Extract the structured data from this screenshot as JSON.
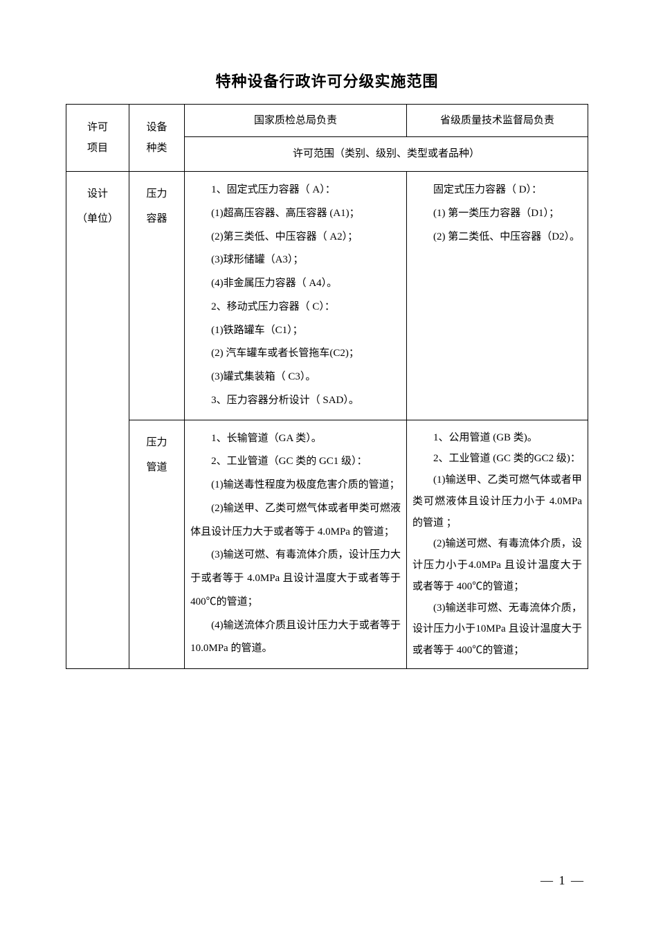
{
  "title": "特种设备行政许可分级实施范围",
  "headers": {
    "permit_project": "许可\n项目",
    "equipment_type": "设备\n种类",
    "national": "国家质检总局负责",
    "provincial": "省级质量技术监督局负责",
    "scope": "许可范围（类别、级别、类型或者品种）"
  },
  "rows": {
    "r1": {
      "permit": "设计\n（单位）",
      "equip1": "压力\n容器",
      "national1": {
        "p1": "1、固定式压力容器（ A）：",
        "p2": "(1)超高压容器、高压容器 (A1)；",
        "p3": "(2)第三类低、中压容器（ A2）；",
        "p4": "(3)球形储罐（A3）；",
        "p5": "(4)非金属压力容器（ A4）。",
        "p6": "2、移动式压力容器（ C）：",
        "p7": "(1)铁路罐车（C1）；",
        "p8": "(2) 汽车罐车或者长管拖车(C2)；",
        "p9": "(3)罐式集装箱（ C3）。",
        "p10": "3、压力容器分析设计（ SAD）。"
      },
      "provincial1": {
        "p1": "固定式压力容器（ D）：",
        "p2": "(1) 第一类压力容器（D1）；",
        "p3": "(2) 第二类低、中压容器（D2）。"
      },
      "equip2": "压力\n管道",
      "national2": {
        "p1": "1、长输管道（GA 类）。",
        "p2": "2、工业管道（GC 类的 GC1 级）：",
        "p3": "(1)输送毒性程度为极度危害介质的管道；",
        "p4": "(2)输送甲、乙类可燃气体或者甲类可燃液体且设计压力大于或者等于 4.0MPa 的管道；",
        "p5": "(3)输送可燃、有毒流体介质，设计压力大于或者等于  4.0MPa 且设计温度大于或者等于  400℃的管道；",
        "p6": "(4)输送流体介质且设计压力大于或者等于 10.0MPa 的管道。"
      },
      "provincial2": {
        "p1": "1、公用管道 (GB 类)。",
        "p2": "2、工业管道 (GC 类的GC2 级)：",
        "p3": "(1)输送甲、乙类可燃气体或者甲类可燃液体且设计压力小于 4.0MPa 的管道 ；",
        "p4": "(2)输送可燃、有毒流体介质，设计压力小于4.0MPa 且设计温度大于或者等于 400℃的管道；",
        "p5": "(3)输送非可燃、无毒流体介质，设计压力小于10MPa 且设计温度大于或者等于 400℃的管道；"
      }
    }
  },
  "page_number": "— 1 —"
}
